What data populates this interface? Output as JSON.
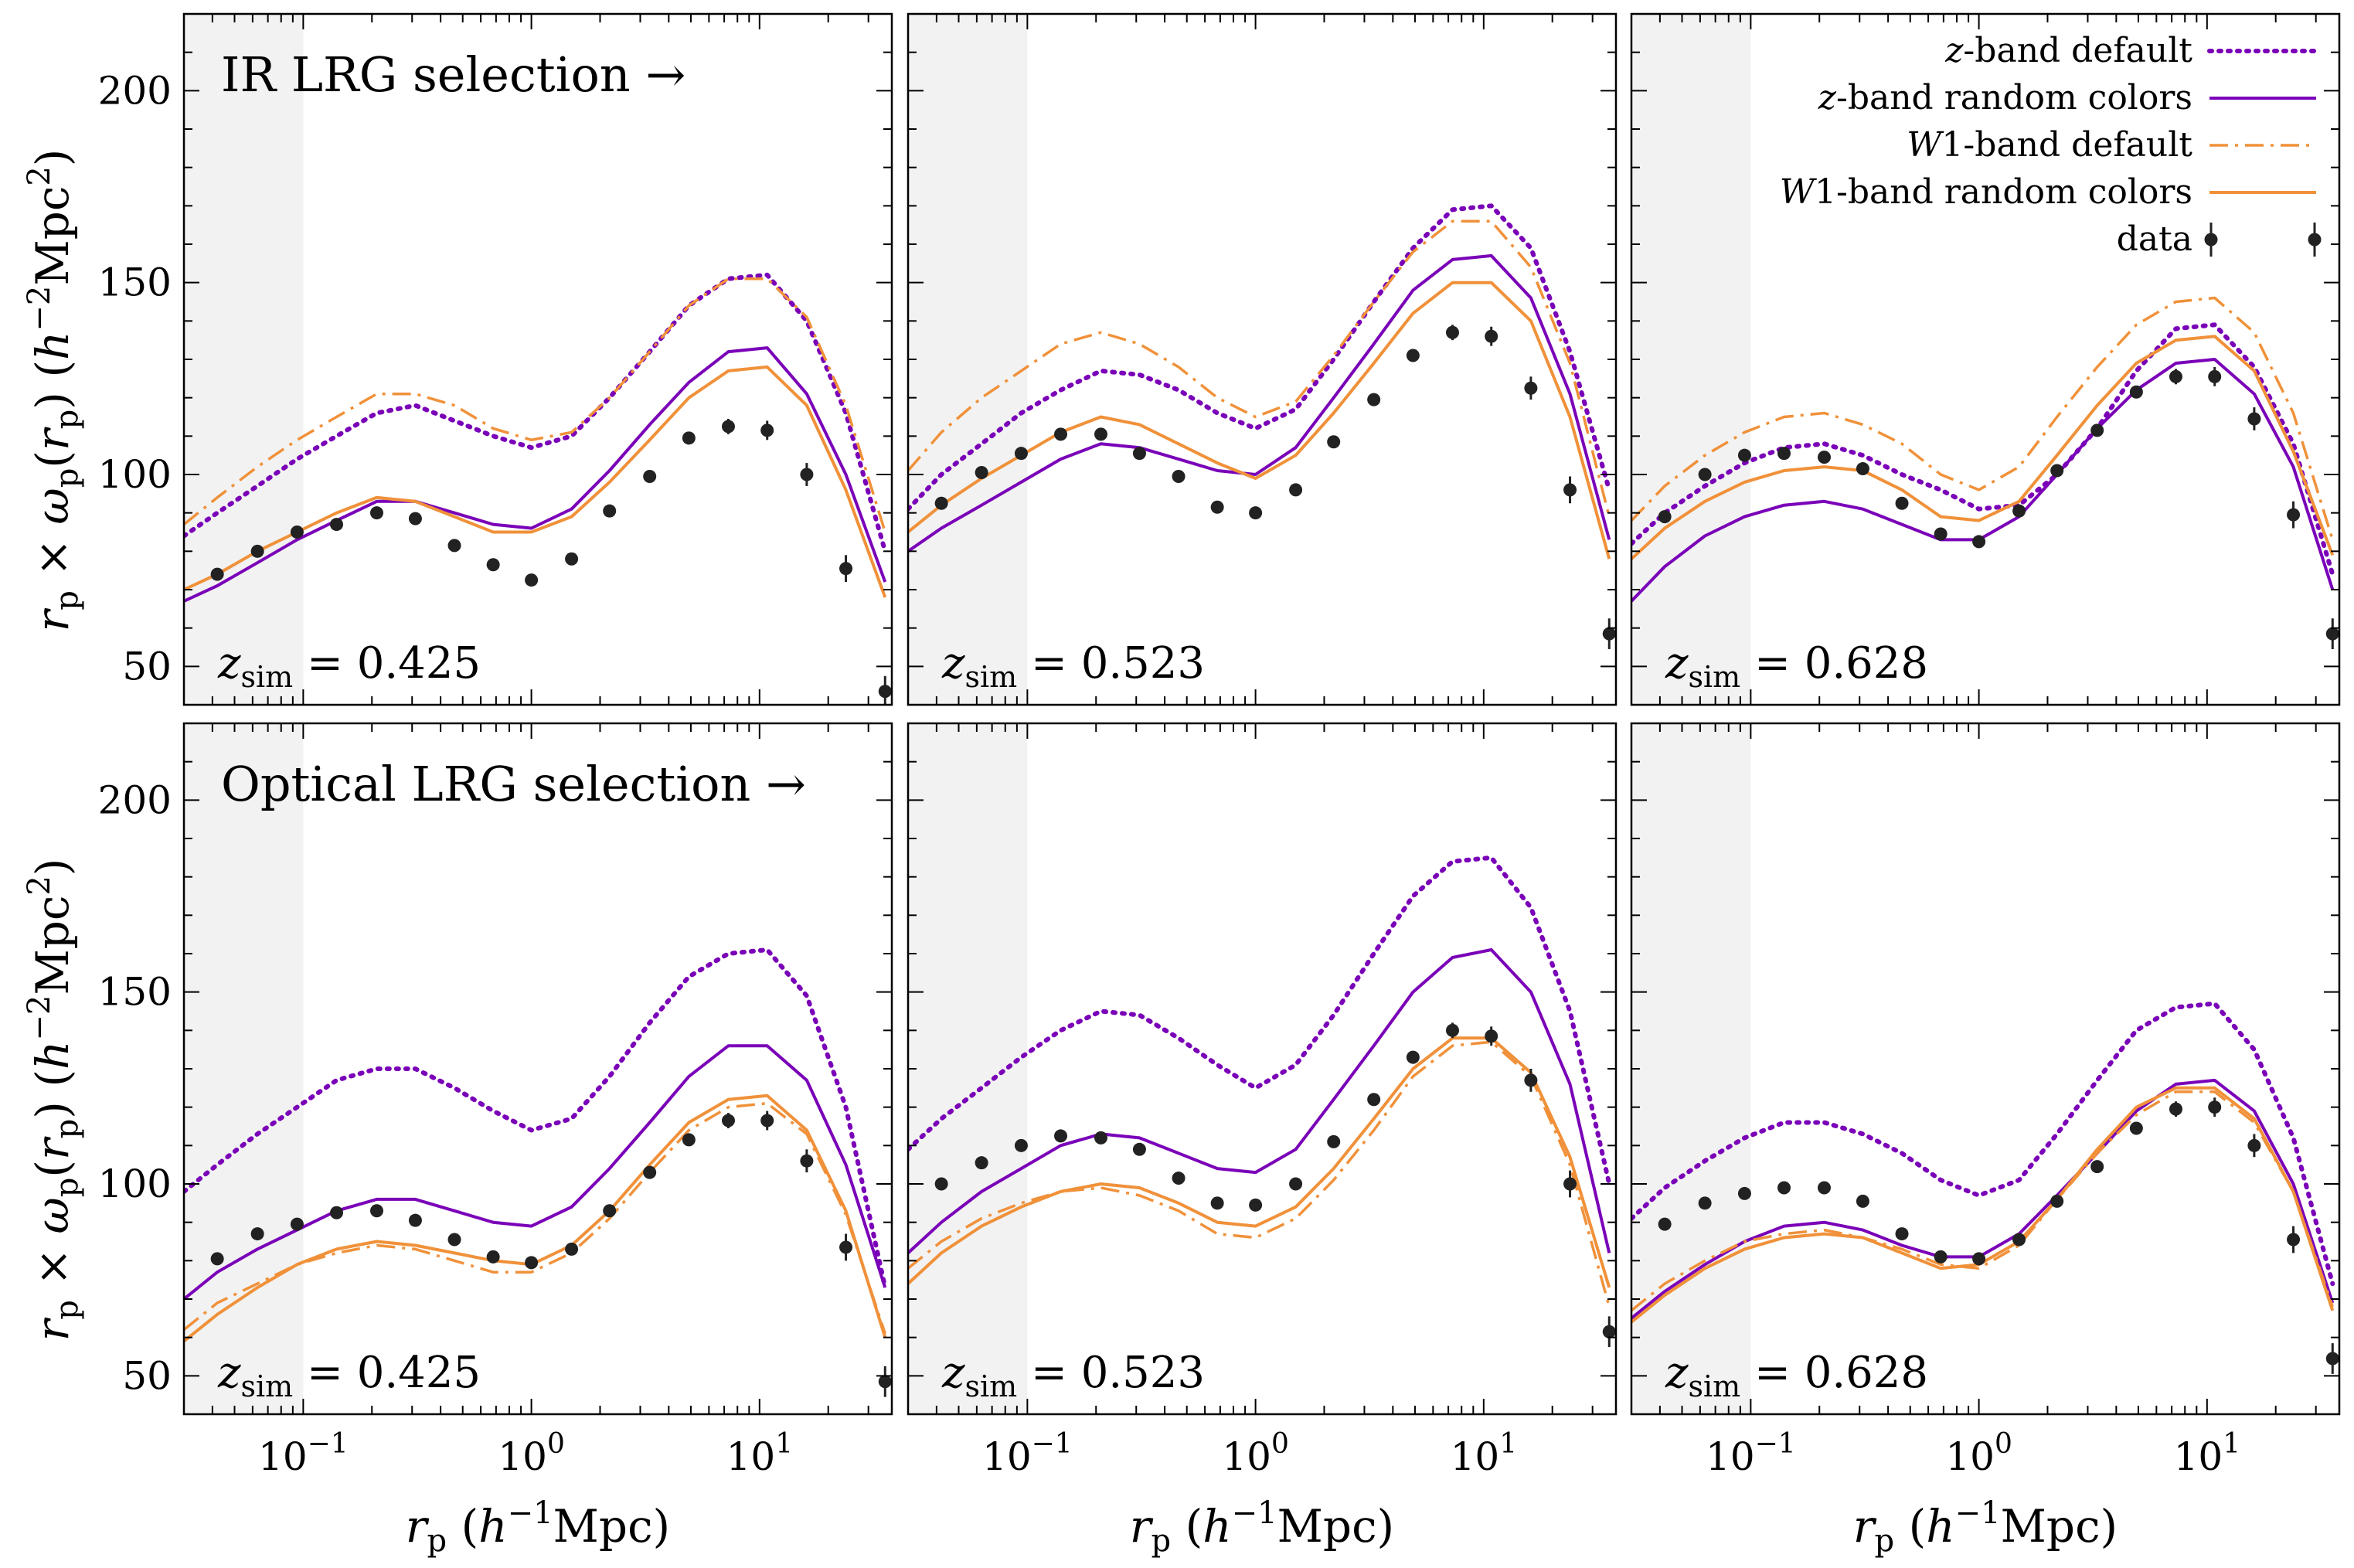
{
  "chart_data": {
    "type": "line",
    "x_scale": "log",
    "xlim": [
      0.03,
      38
    ],
    "ylim": [
      40,
      220
    ],
    "xlabel": "r_p (h^-1 Mpc)",
    "ylabel": "r_p × ω_p(r_p) (h^-2 Mpc^2)",
    "x_ticks": [
      {
        "value": 0.1,
        "base": "10",
        "exp": "−1"
      },
      {
        "value": 1,
        "base": "10",
        "exp": "0"
      },
      {
        "value": 10,
        "base": "10",
        "exp": "1"
      }
    ],
    "y_ticks": [
      50,
      100,
      150,
      200
    ],
    "excluded_region": [
      0.03,
      0.1
    ],
    "x": [
      0.03,
      0.042,
      0.063,
      0.094,
      0.14,
      0.21,
      0.31,
      0.46,
      0.68,
      1.0,
      1.5,
      2.2,
      3.3,
      4.9,
      7.3,
      10.8,
      16.1,
      23.9,
      35.5
    ],
    "styles": {
      "zdef": {
        "color": "#7a00b8",
        "dash": "3 9",
        "width": 6
      },
      "zrand": {
        "color": "#7a00b8",
        "dash": "",
        "width": 4
      },
      "w1def": {
        "color": "#f0913a",
        "dash": "24 9 4 9",
        "width": 3.5
      },
      "w1rand": {
        "color": "#f0913a",
        "dash": "",
        "width": 4
      }
    },
    "legend": [
      {
        "key": "zdef",
        "label": "z-band default"
      },
      {
        "key": "zrand",
        "label": "z-band random colors"
      },
      {
        "key": "w1def",
        "label": "W1-band default"
      },
      {
        "key": "w1rand",
        "label": "W1-band random colors"
      },
      {
        "key": "data",
        "label": "data"
      }
    ],
    "row_labels": [
      "IR LRG selection →",
      "Optical LRG selection →"
    ],
    "panels": [
      {
        "row": 0,
        "col": 0,
        "zsim": "0.425",
        "series": {
          "zdef": [
            84,
            90,
            97,
            104,
            110,
            116,
            118,
            114,
            110,
            107,
            110,
            120,
            132,
            144,
            151,
            152,
            140,
            116,
            80
          ],
          "zrand": [
            67,
            71,
            77,
            83,
            88,
            93,
            93,
            90,
            87,
            86,
            91,
            101,
            113,
            124,
            132,
            133,
            121,
            100,
            72
          ],
          "w1def": [
            87,
            94,
            102,
            109,
            115,
            121,
            121,
            118,
            112,
            109,
            111,
            120,
            132,
            144,
            151,
            151,
            141,
            118,
            85
          ],
          "w1rand": [
            70,
            74,
            80,
            85,
            90,
            94,
            93,
            89,
            85,
            85,
            89,
            98,
            109,
            120,
            127,
            128,
            118,
            96,
            68
          ]
        },
        "data_points": {
          "x": [
            0.042,
            0.063,
            0.094,
            0.14,
            0.21,
            0.31,
            0.46,
            0.68,
            1.0,
            1.5,
            2.2,
            3.3,
            4.9,
            7.3,
            10.8,
            16.1,
            23.9,
            35.5
          ],
          "y": [
            74,
            80,
            85,
            87,
            90,
            88.5,
            81.5,
            76.5,
            72.5,
            78,
            90.5,
            99.5,
            109.5,
            112.5,
            111.5,
            100,
            75.5,
            43.5
          ],
          "err": [
            1.5,
            1.5,
            1.5,
            1.5,
            1.5,
            1.5,
            1.5,
            1.5,
            1.5,
            1.5,
            1.5,
            1.5,
            1.5,
            2,
            2.5,
            3,
            3.5,
            4
          ]
        }
      },
      {
        "row": 0,
        "col": 1,
        "zsim": "0.523",
        "series": {
          "zdef": [
            91,
            100,
            108,
            116,
            122,
            127,
            126,
            122,
            116,
            112,
            117,
            130,
            145,
            159,
            169,
            170,
            159,
            132,
            96
          ],
          "zrand": [
            80,
            86,
            92,
            98,
            104,
            108,
            107,
            104,
            101,
            100,
            107,
            120,
            134,
            148,
            156,
            157,
            146,
            121,
            83
          ],
          "w1def": [
            101,
            111,
            120,
            127,
            134,
            137,
            134,
            128,
            120,
            115,
            119,
            131,
            145,
            158,
            166,
            166,
            154,
            129,
            89
          ],
          "w1rand": [
            85,
            92,
            99,
            105,
            111,
            115,
            113,
            108,
            103,
            99,
            105,
            116,
            129,
            142,
            150,
            150,
            140,
            115,
            78
          ]
        },
        "data_points": {
          "x": [
            0.042,
            0.063,
            0.094,
            0.14,
            0.21,
            0.31,
            0.46,
            0.68,
            1.0,
            1.5,
            2.2,
            3.3,
            4.9,
            7.3,
            10.8,
            16.1,
            23.9,
            35.5
          ],
          "y": [
            92.5,
            100.5,
            105.5,
            110.5,
            110.5,
            105.5,
            99.5,
            91.5,
            90,
            96,
            108.5,
            119.5,
            131,
            137,
            136,
            122.5,
            96,
            58.5
          ],
          "err": [
            1.5,
            1.5,
            1.5,
            1.5,
            1.5,
            1.5,
            1.5,
            1.5,
            1.5,
            1.5,
            1.5,
            1.5,
            1.5,
            2,
            2.5,
            3,
            3.5,
            4
          ]
        }
      },
      {
        "row": 0,
        "col": 2,
        "zsim": "0.628",
        "series": {
          "zdef": [
            82,
            90,
            97,
            103,
            107,
            108,
            105,
            100,
            96,
            91,
            92,
            100,
            112,
            127,
            138,
            139,
            128,
            108,
            74
          ],
          "zrand": [
            67,
            76,
            84,
            89,
            92,
            93,
            91,
            87,
            83,
            83,
            89,
            100,
            112,
            122,
            129,
            130,
            121,
            102,
            70
          ],
          "w1def": [
            88,
            97,
            105,
            111,
            115,
            116,
            113,
            108,
            100,
            96,
            102,
            115,
            128,
            139,
            145,
            146,
            137,
            116,
            83
          ],
          "w1rand": [
            78,
            86,
            93,
            98,
            101,
            102,
            101,
            96,
            89,
            88,
            93,
            105,
            118,
            129,
            135,
            136,
            127,
            106,
            79
          ]
        },
        "data_points": {
          "x": [
            0.042,
            0.063,
            0.094,
            0.14,
            0.21,
            0.31,
            0.46,
            0.68,
            1.0,
            1.5,
            2.2,
            3.3,
            4.9,
            7.3,
            10.8,
            16.1,
            23.9,
            35.5
          ],
          "y": [
            89,
            100,
            105,
            105.5,
            104.5,
            101.5,
            92.5,
            84.5,
            82.5,
            90.5,
            101,
            111.5,
            121.5,
            125.5,
            125.5,
            114.5,
            89.5,
            58.5
          ],
          "err": [
            1.5,
            1.5,
            1.5,
            1.5,
            1.5,
            1.5,
            1.5,
            1.5,
            1.5,
            1.5,
            1.5,
            1.5,
            1.5,
            2,
            2.5,
            3,
            3.5,
            4
          ]
        }
      },
      {
        "row": 1,
        "col": 0,
        "zsim": "0.425",
        "series": {
          "zdef": [
            98,
            105,
            113,
            120,
            127,
            130,
            130,
            125,
            119,
            114,
            117,
            128,
            142,
            154,
            160,
            161,
            149,
            120,
            73
          ],
          "zrand": [
            70,
            77,
            83,
            88,
            93,
            96,
            96,
            93,
            90,
            89,
            94,
            104,
            116,
            128,
            136,
            136,
            127,
            105,
            73
          ],
          "w1def": [
            62,
            69,
            74,
            79,
            82,
            84,
            83,
            80,
            77,
            77,
            82,
            91,
            103,
            114,
            120,
            121,
            113,
            92,
            61
          ],
          "w1rand": [
            59,
            66,
            73,
            79,
            83,
            85,
            84,
            82,
            80,
            79,
            84,
            93,
            105,
            116,
            122,
            123,
            114,
            93,
            60
          ]
        },
        "data_points": {
          "x": [
            0.042,
            0.063,
            0.094,
            0.14,
            0.21,
            0.31,
            0.46,
            0.68,
            1.0,
            1.5,
            2.2,
            3.3,
            4.9,
            7.3,
            10.8,
            16.1,
            23.9,
            35.5
          ],
          "y": [
            80.5,
            87,
            89.5,
            92.5,
            93,
            90.5,
            85.5,
            81,
            79.5,
            83,
            93,
            103,
            111.5,
            116.5,
            116.5,
            106,
            83.5,
            48.5
          ],
          "err": [
            1.5,
            1.5,
            1.5,
            1.5,
            1.5,
            1.5,
            1.5,
            1.5,
            1.5,
            1.5,
            1.5,
            1.5,
            1.5,
            2,
            2.5,
            3,
            3.5,
            4
          ]
        }
      },
      {
        "row": 1,
        "col": 1,
        "zsim": "0.523",
        "series": {
          "zdef": [
            109,
            117,
            125,
            133,
            140,
            145,
            144,
            138,
            131,
            125,
            131,
            144,
            160,
            175,
            184,
            185,
            172,
            145,
            100
          ],
          "zrand": [
            82,
            90,
            98,
            104,
            110,
            113,
            112,
            108,
            104,
            103,
            109,
            122,
            136,
            150,
            159,
            161,
            150,
            126,
            82
          ],
          "w1def": [
            78,
            85,
            91,
            95,
            98,
            99,
            97,
            93,
            87,
            86,
            91,
            101,
            114,
            128,
            136,
            137,
            128,
            105,
            68
          ],
          "w1rand": [
            74,
            82,
            89,
            94,
            98,
            100,
            99,
            95,
            90,
            89,
            94,
            104,
            117,
            130,
            138,
            138,
            129,
            107,
            73
          ]
        },
        "data_points": {
          "x": [
            0.042,
            0.063,
            0.094,
            0.14,
            0.21,
            0.31,
            0.46,
            0.68,
            1.0,
            1.5,
            2.2,
            3.3,
            4.9,
            7.3,
            10.8,
            16.1,
            23.9,
            35.5
          ],
          "y": [
            100,
            105.5,
            110,
            112.5,
            112,
            109,
            101.5,
            95,
            94.5,
            100,
            111,
            122,
            133,
            140,
            138.5,
            127,
            100,
            61.5
          ],
          "err": [
            1.5,
            1.5,
            1.5,
            1.5,
            1.5,
            1.5,
            1.5,
            1.5,
            1.5,
            1.5,
            1.5,
            1.5,
            1.5,
            2,
            2.5,
            3,
            3.5,
            4
          ]
        }
      },
      {
        "row": 1,
        "col": 2,
        "zsim": "0.628",
        "series": {
          "zdef": [
            91,
            99,
            106,
            112,
            116,
            116,
            113,
            108,
            101,
            97,
            101,
            113,
            127,
            140,
            146,
            147,
            135,
            112,
            74
          ],
          "zrand": [
            65,
            72,
            79,
            85,
            89,
            90,
            88,
            84,
            81,
            81,
            87,
            97,
            108,
            119,
            126,
            127,
            119,
            100,
            69
          ],
          "w1def": [
            67,
            74,
            80,
            85,
            87,
            88,
            86,
            83,
            79,
            78,
            84,
            96,
            108,
            118,
            124,
            124,
            116,
            98,
            68
          ],
          "w1rand": [
            64,
            71,
            78,
            83,
            86,
            87,
            86,
            82,
            78,
            79,
            85,
            96,
            109,
            120,
            125,
            125,
            117,
            98,
            67
          ]
        },
        "data_points": {
          "x": [
            0.042,
            0.063,
            0.094,
            0.14,
            0.21,
            0.31,
            0.46,
            0.68,
            1.0,
            1.5,
            2.2,
            3.3,
            4.9,
            7.3,
            10.8,
            16.1,
            23.9,
            35.5
          ],
          "y": [
            89.5,
            95,
            97.5,
            99,
            99,
            95.5,
            87,
            81,
            80.5,
            85.5,
            95.5,
            104.5,
            114.5,
            119.5,
            120,
            110,
            85.5,
            54.5
          ],
          "err": [
            1.5,
            1.5,
            1.5,
            1.5,
            1.5,
            1.5,
            1.5,
            1.5,
            1.5,
            1.5,
            1.5,
            1.5,
            1.5,
            2,
            2.5,
            3,
            3.5,
            4
          ]
        }
      }
    ]
  }
}
